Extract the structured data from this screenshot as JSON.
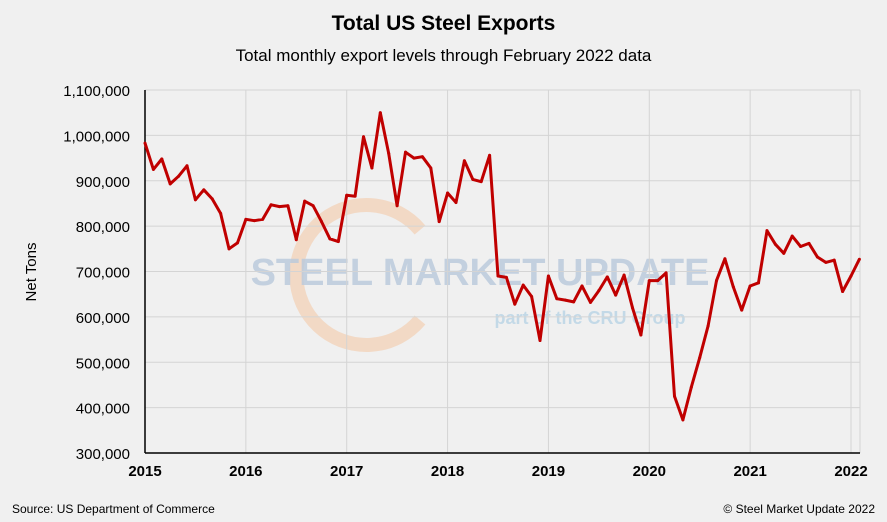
{
  "chart_data": {
    "type": "line",
    "title": "Total US Steel Exports",
    "subtitle": "Total monthly export levels through February 2022 data",
    "ylabel": "Net Tons",
    "xlabel": "",
    "ylim": [
      300000,
      1100000
    ],
    "yticks": [
      "300,000",
      "400,000",
      "500,000",
      "600,000",
      "700,000",
      "800,000",
      "900,000",
      "1,000,000",
      "1,100,000"
    ],
    "xticks": [
      "2015",
      "2016",
      "2017",
      "2018",
      "2019",
      "2020",
      "2021",
      "2022"
    ],
    "x_start": "2015-01",
    "x_end": "2022-02",
    "grid": true,
    "series": [
      {
        "color": "#c00000",
        "values": [
          983000,
          925000,
          948000,
          893000,
          910000,
          933000,
          858000,
          880000,
          860000,
          828000,
          750000,
          763000,
          815000,
          812000,
          815000,
          847000,
          843000,
          845000,
          770000,
          855000,
          845000,
          810000,
          772000,
          766000,
          868000,
          866000,
          997000,
          928000,
          1050000,
          960000,
          845000,
          963000,
          950000,
          953000,
          928000,
          810000,
          873000,
          852000,
          944000,
          903000,
          898000,
          956000,
          690000,
          687000,
          628000,
          670000,
          645000,
          548000,
          690000,
          640000,
          637000,
          633000,
          668000,
          632000,
          658000,
          688000,
          648000,
          692000,
          620000,
          560000,
          680000,
          680000,
          697000,
          425000,
          373000,
          445000,
          510000,
          580000,
          680000,
          728000,
          666000,
          615000,
          668000,
          675000,
          790000,
          760000,
          740000,
          778000,
          755000,
          762000,
          732000,
          720000,
          725000,
          656000,
          690000,
          727000
        ]
      }
    ]
  },
  "source": "Source: US Department of Commerce",
  "copyright": "© Steel Market Update 2022",
  "watermark": {
    "line1": "STEEL MARKET UPDATE",
    "line2": "part of the CRU Group"
  }
}
